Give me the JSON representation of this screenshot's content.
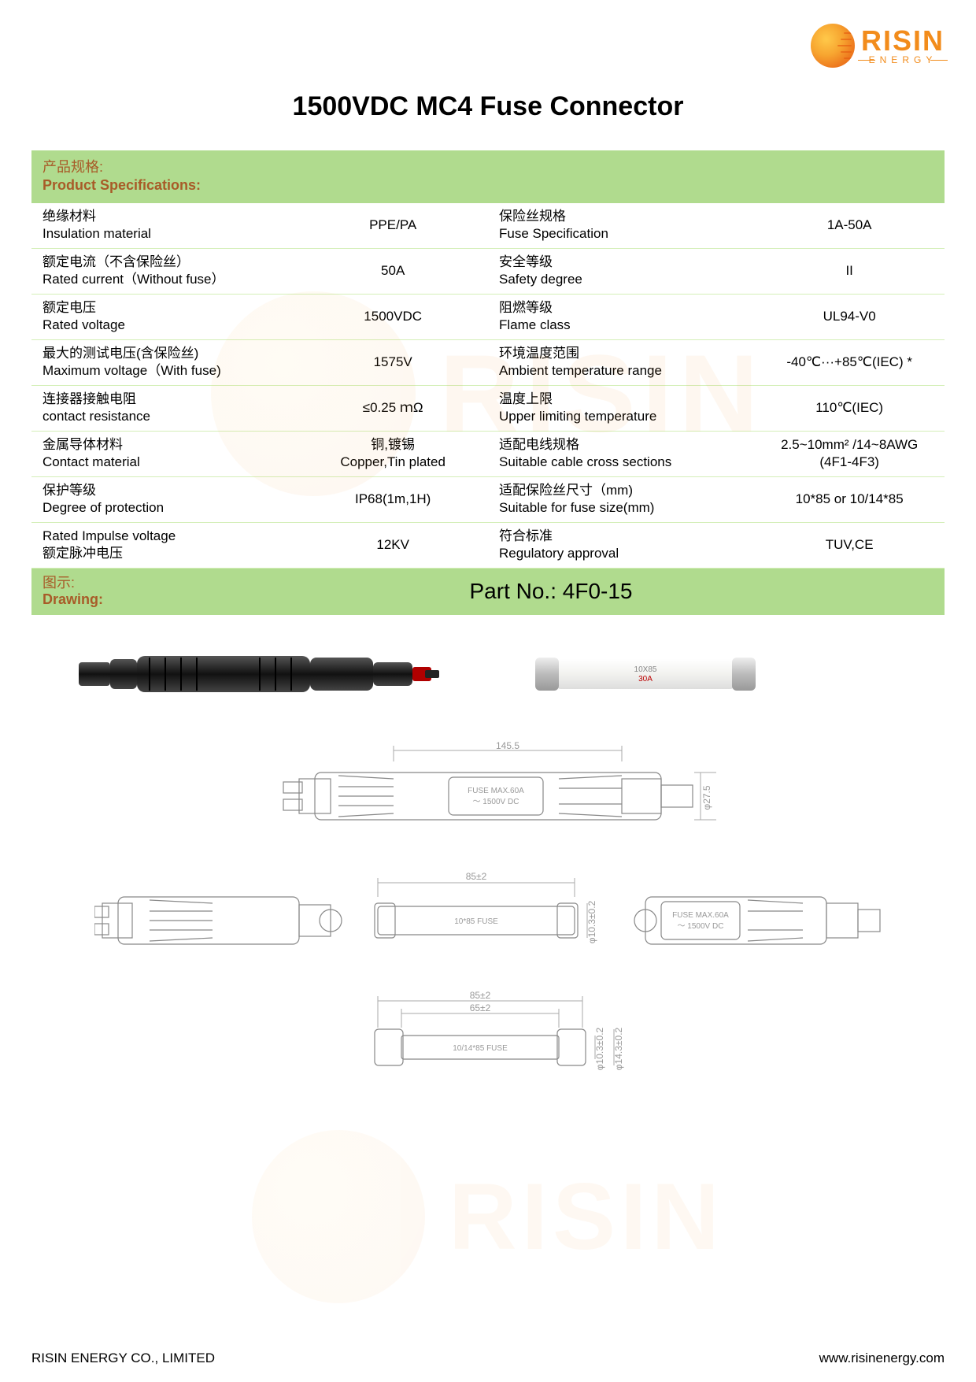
{
  "logo": {
    "brand": "RISIN",
    "sub": "ENERGY"
  },
  "title": "1500VDC MC4 Fuse Connector",
  "section_specs": {
    "cn": "产品规格:",
    "en": "Product Specifications:"
  },
  "specs_left": [
    {
      "cn": "绝缘材料",
      "en": "Insulation material",
      "val": "PPE/PA"
    },
    {
      "cn": "额定电流（不含保险丝）",
      "en": "Rated current（Without fuse）",
      "val": "50A"
    },
    {
      "cn": "额定电压",
      "en": "Rated voltage",
      "val": "1500VDC"
    },
    {
      "cn": "最大的测试电压(含保险丝)",
      "en": "Maximum voltage（With fuse)",
      "val": "1575V"
    },
    {
      "cn": "连接器接触电阻",
      "en": "contact resistance",
      "val": "≤0.25 ｍΩ"
    },
    {
      "cn": "金属导体材料",
      "en": "Contact material",
      "val_cn": "铜,镀锡",
      "val_en": "Copper,Tin plated"
    },
    {
      "cn": "保护等级",
      "en": "Degree of protection",
      "val": "IP68(1m,1H)"
    },
    {
      "cn": "Rated Impulse voltage",
      "en": "额定脉冲电压",
      "val": "12KV"
    }
  ],
  "specs_right": [
    {
      "cn": "保险丝规格",
      "en": "Fuse Specification",
      "val": "1A-50A"
    },
    {
      "cn": "安全等级",
      "en": "Safety degree",
      "val": "II"
    },
    {
      "cn": "阻燃等级",
      "en": "Flame class",
      "val": "UL94-V0"
    },
    {
      "cn": "环境温度范围",
      "en": "Ambient temperature range",
      "val": "-40℃···+85℃(IEC) *"
    },
    {
      "cn": "温度上限",
      "en": "Upper limiting temperature",
      "val": "110℃(IEC)"
    },
    {
      "cn": "适配电线规格",
      "en": "Suitable cable cross sections",
      "val_html": "2.5~10mm² /14~8AWG",
      "val_sub": "(4F1-4F3)"
    },
    {
      "cn": "适配保险丝尺寸（mm)",
      "en": "Suitable for fuse size(mm)",
      "val": "10*85 or 10/14*85"
    },
    {
      "cn": "符合标准",
      "en": "Regulatory approval",
      "val": "TUV,CE"
    }
  ],
  "section_drawing": {
    "cn": "图示:",
    "en": "Drawing:",
    "part_no": "Part No.: 4F0-15"
  },
  "drawing_dims": {
    "top_len": "145.5",
    "top_dia": "φ27.5",
    "fuse_label_top": "FUSE MAX.60A",
    "volt_label": "～ 1500V DC",
    "mid_len": "85±2",
    "mid_dia": "φ10.3±0.2",
    "mid_fuse": "10*85 FUSE",
    "bot_len1": "85±2",
    "bot_len2": "65±2",
    "bot_dia1": "φ10.3±0.2",
    "bot_dia2": "φ14.3±0.2",
    "bot_fuse": "10/14*85 FUSE",
    "photo_fuse_text1": "10X85",
    "photo_fuse_text2": "30A"
  },
  "footer": {
    "company": "RISIN ENERGY CO., LIMITED",
    "url": "www.risinenergy.com"
  },
  "colors": {
    "green_bar": "#b0db8e",
    "accent_text": "#a85b28",
    "row_border": "#d4efb8",
    "orange": "#f28c1c"
  }
}
